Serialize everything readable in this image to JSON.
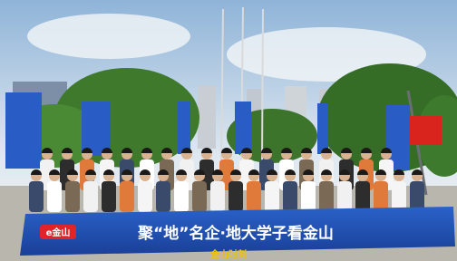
{
  "banner": {
    "logo": "e金山",
    "text": "聚“地”名企·地大学子看金山"
  },
  "watermark": "金山时刻"
}
